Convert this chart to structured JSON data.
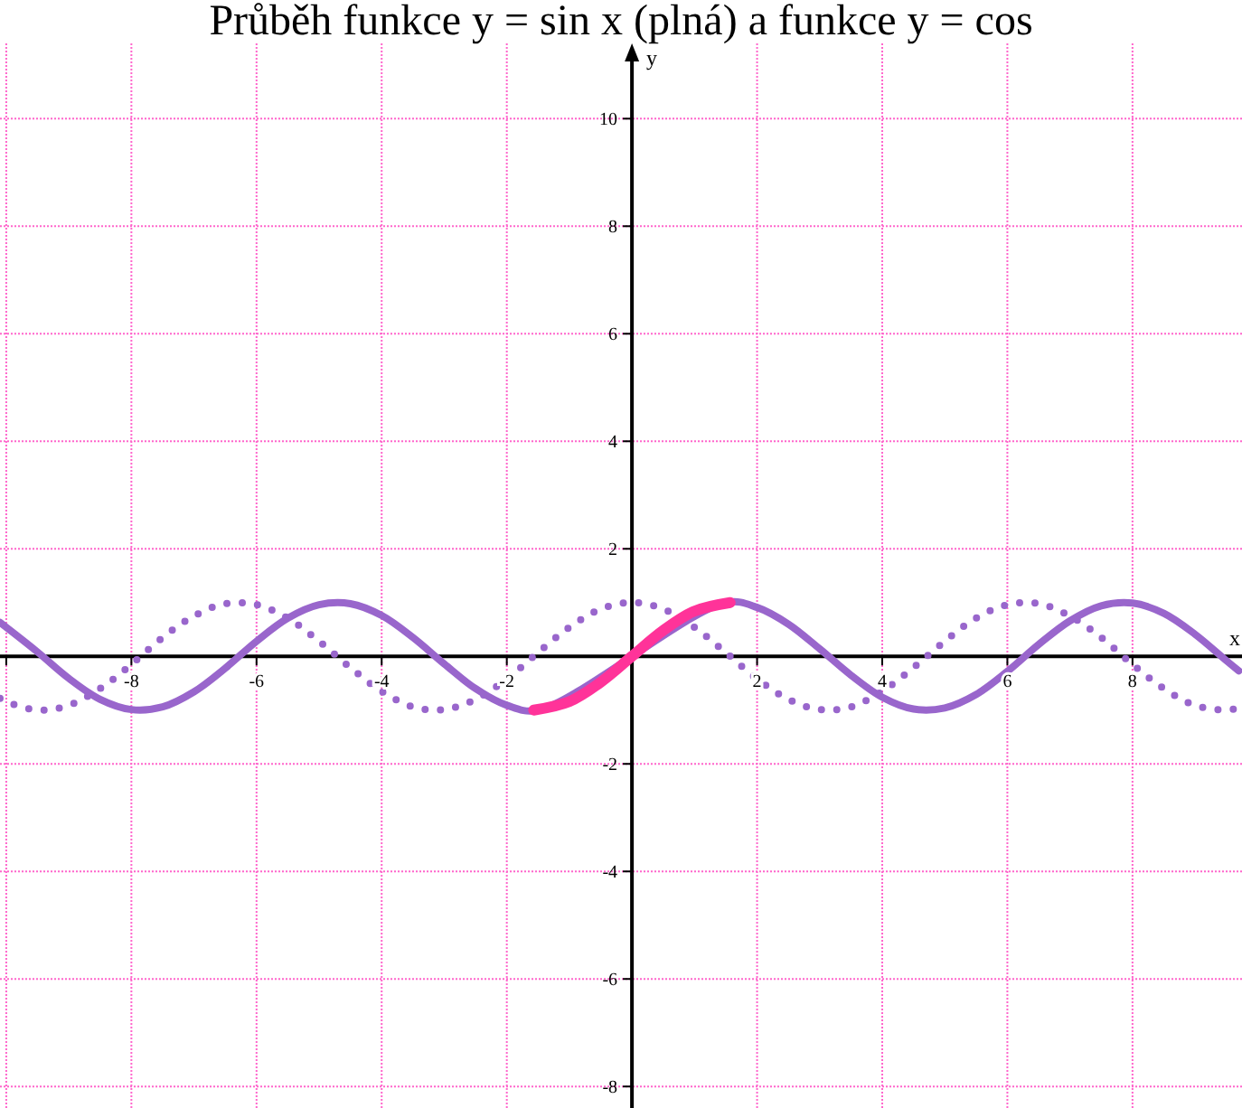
{
  "chart_data": {
    "type": "line",
    "title": "Průběh funkce y = sin x (plná) a funkce y = cos",
    "xlabel": "x",
    "ylabel": "y",
    "xlim": [
      -10.1,
      9.75
    ],
    "ylim": [
      -8.4,
      11.4
    ],
    "xticks": [
      {
        "value": -10,
        "label": null
      },
      -8,
      -6,
      -4,
      -2,
      2,
      4,
      6,
      8
    ],
    "yticks": [
      -8,
      -6,
      -4,
      -2,
      2,
      4,
      6,
      8,
      10
    ],
    "grid": true,
    "series": [
      {
        "color": "#9966cc",
        "line_style": "solid",
        "x": [
          -10.1,
          -10,
          -9.5,
          -9,
          -8.5,
          -8,
          -7.5,
          -7,
          -6.5,
          -6,
          -5.5,
          -5,
          -4.5,
          -4,
          -3.5,
          -3,
          -2.5,
          -2,
          -1.5,
          1.5,
          2,
          2.5,
          3,
          3.5,
          4,
          4.5,
          5,
          5.5,
          6,
          6.5,
          7,
          7.5,
          8,
          8.5,
          9,
          9.5,
          9.7
        ],
        "values": [
          0.63,
          0.54,
          0.08,
          -0.41,
          -0.8,
          -0.99,
          -0.94,
          -0.66,
          -0.22,
          0.28,
          0.71,
          0.96,
          0.98,
          0.76,
          0.35,
          -0.14,
          -0.6,
          -0.91,
          -1,
          1,
          0.91,
          0.6,
          0.14,
          -0.35,
          -0.76,
          -0.98,
          -0.96,
          -0.71,
          -0.28,
          0.22,
          0.66,
          0.94,
          0.99,
          0.8,
          0.41,
          -0.08,
          -0.27
        ]
      },
      {
        "color": "#9966cc",
        "line_style": "dotted",
        "x": [
          -10.1,
          -10,
          -9.5,
          -9,
          -8.5,
          -8,
          -7.5,
          -7,
          -6.5,
          -6,
          -5.5,
          -5,
          -4.5,
          -4,
          -3.5,
          -3,
          -2.5,
          -2,
          -1.5,
          -1,
          -0.5,
          0,
          0.5,
          1,
          1.5,
          2,
          2.5,
          3,
          3.5,
          4,
          4.5,
          5,
          5.5,
          6,
          6.5,
          7,
          7.5,
          8,
          8.5,
          9,
          9.5,
          9.7
        ],
        "values": [
          -0.78,
          -0.84,
          -1,
          -0.91,
          -0.6,
          -0.15,
          0.35,
          0.75,
          0.98,
          0.96,
          0.71,
          0.28,
          -0.21,
          -0.65,
          -0.94,
          -0.99,
          -0.8,
          -0.42,
          0.07,
          0.54,
          0.88,
          1,
          0.88,
          0.54,
          0.07,
          -0.42,
          -0.8,
          -0.99,
          -0.94,
          -0.65,
          -0.21,
          0.28,
          0.71,
          0.96,
          0.98,
          0.75,
          0.35,
          -0.15,
          -0.6,
          -0.91,
          -1,
          -0.96
        ]
      },
      {
        "color": "#ff3399",
        "line_style": "solid",
        "x": [
          -1.57,
          -1,
          -0.5,
          0,
          0.5,
          1,
          1.57
        ],
        "values": [
          -1,
          -0.84,
          -0.48,
          0,
          0.48,
          0.84,
          1
        ]
      }
    ]
  }
}
